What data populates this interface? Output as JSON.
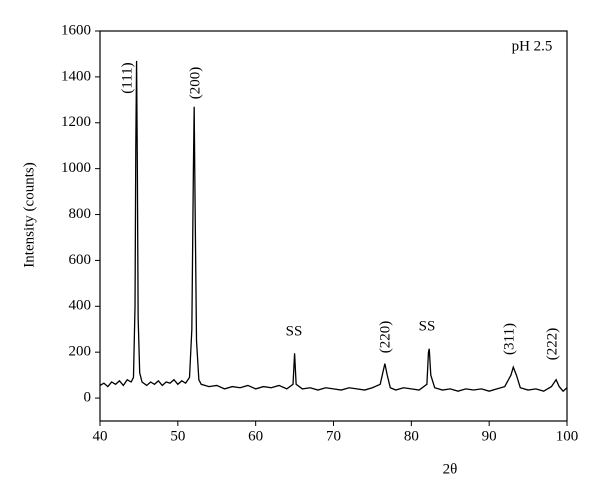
{
  "chart_data": {
    "type": "line",
    "xlabel": "2θ",
    "ylabel": "Intensity (counts)",
    "annotations": [
      "(111)",
      "(200)",
      "SS",
      "(220)",
      "SS",
      "(311)",
      "(222)",
      "pH 2.5"
    ],
    "x": [
      40,
      40.5,
      41,
      41.5,
      42,
      42.5,
      43,
      43.5,
      44,
      44.3,
      44.5,
      44.6,
      44.7,
      44.8,
      44.9,
      45.1,
      45.4,
      46,
      46.5,
      47,
      47.5,
      48,
      48.5,
      49,
      49.5,
      50,
      50.5,
      51,
      51.5,
      51.8,
      52,
      52.1,
      52.2,
      52.4,
      52.7,
      53,
      54,
      55,
      56,
      57,
      58,
      59,
      60,
      61,
      62,
      63,
      64,
      64.8,
      65,
      65.2,
      66,
      67,
      68,
      69,
      70,
      71,
      72,
      73,
      74,
      75,
      76,
      76.4,
      76.6,
      76.9,
      77.3,
      78,
      79,
      80,
      81,
      82,
      82.2,
      82.3,
      82.5,
      83,
      84,
      85,
      86,
      87,
      88,
      89,
      90,
      91,
      92,
      92.8,
      93.1,
      93.5,
      94,
      95,
      96,
      97,
      98,
      98.6,
      99,
      99.5,
      100
    ],
    "series": [
      {
        "color": "#000000",
        "values": [
          55,
          65,
          50,
          70,
          60,
          75,
          55,
          80,
          70,
          90,
          400,
          1100,
          1470,
          1000,
          350,
          110,
          70,
          55,
          70,
          60,
          75,
          55,
          70,
          65,
          80,
          60,
          75,
          65,
          90,
          300,
          1000,
          1270,
          900,
          250,
          80,
          60,
          50,
          55,
          40,
          50,
          45,
          55,
          40,
          50,
          45,
          55,
          40,
          60,
          195,
          60,
          40,
          45,
          35,
          45,
          40,
          35,
          45,
          40,
          35,
          45,
          60,
          120,
          150,
          100,
          45,
          35,
          45,
          40,
          35,
          60,
          200,
          215,
          100,
          45,
          35,
          40,
          30,
          40,
          35,
          40,
          30,
          40,
          50,
          100,
          135,
          100,
          45,
          35,
          40,
          30,
          50,
          80,
          50,
          30,
          45
        ]
      }
    ],
    "xlim": [
      40,
      100
    ],
    "xticks": [
      40,
      50,
      60,
      70,
      80,
      90,
      100
    ],
    "ylim": [
      -100,
      1600
    ],
    "yticks": [
      0,
      200,
      400,
      600,
      800,
      1000,
      1200,
      1400,
      1600
    ]
  }
}
